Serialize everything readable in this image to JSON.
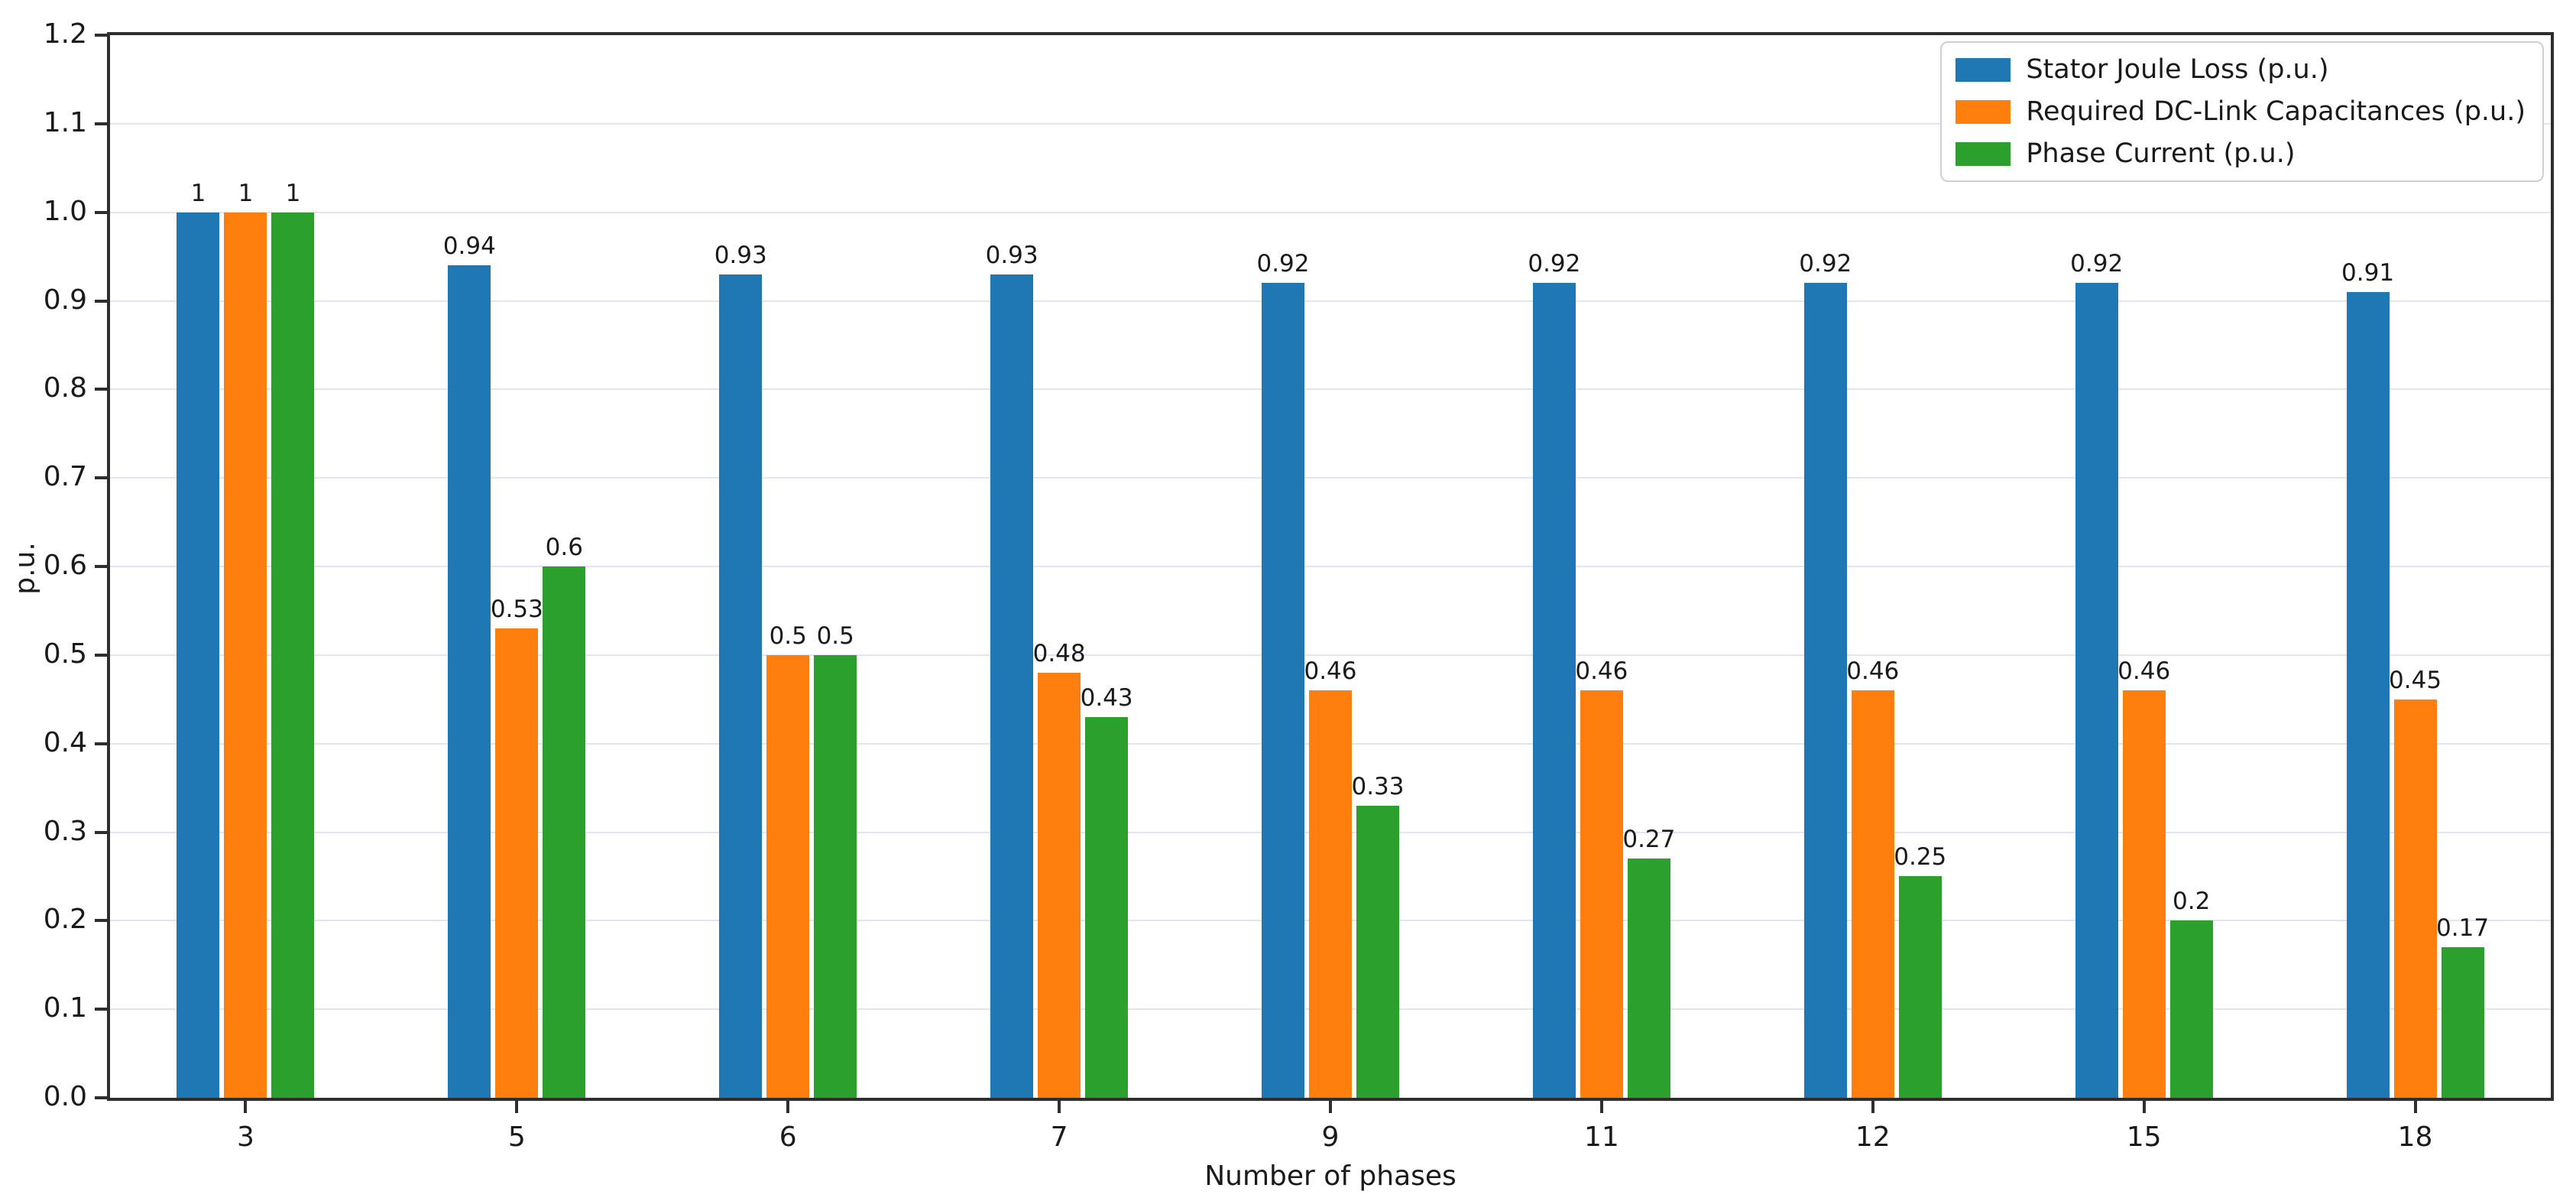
{
  "chart_data": {
    "type": "bar",
    "title": "",
    "xlabel": "Number of phases",
    "ylabel": "p.u.",
    "ylim": [
      0.0,
      1.2
    ],
    "yticks": [
      "0.0",
      "0.1",
      "0.2",
      "0.3",
      "0.4",
      "0.5",
      "0.6",
      "0.7",
      "0.8",
      "0.9",
      "1.0",
      "1.1",
      "1.2"
    ],
    "categories": [
      "3",
      "5",
      "6",
      "7",
      "9",
      "11",
      "12",
      "15",
      "18"
    ],
    "grid": "horizontal",
    "gridline_color": "#e3e3f4",
    "spine_color": "#2e2e2e",
    "legend_position": "upper right",
    "series": [
      {
        "name": "Stator Joule Loss (p.u.)",
        "color": "#1f77b4",
        "values": [
          1,
          0.94,
          0.93,
          0.93,
          0.92,
          0.92,
          0.92,
          0.92,
          0.91
        ],
        "labels": [
          "1",
          "0.94",
          "0.93",
          "0.93",
          "0.92",
          "0.92",
          "0.92",
          "0.92",
          "0.91"
        ]
      },
      {
        "name": "Required DC-Link Capacitances (p.u.)",
        "color": "#ff7f0e",
        "values": [
          1,
          0.53,
          0.5,
          0.48,
          0.46,
          0.46,
          0.46,
          0.46,
          0.45
        ],
        "labels": [
          "1",
          "0.53",
          "0.5",
          "0.48",
          "0.46",
          "0.46",
          "0.46",
          "0.46",
          "0.45"
        ]
      },
      {
        "name": "Phase Current (p.u.)",
        "color": "#2ca02c",
        "values": [
          1,
          0.6,
          0.5,
          0.43,
          0.33,
          0.27,
          0.25,
          0.2,
          0.17
        ],
        "labels": [
          "1",
          "0.6",
          "0.5",
          "0.43",
          "0.33",
          "0.27",
          "0.25",
          "0.2",
          "0.17"
        ]
      }
    ]
  }
}
